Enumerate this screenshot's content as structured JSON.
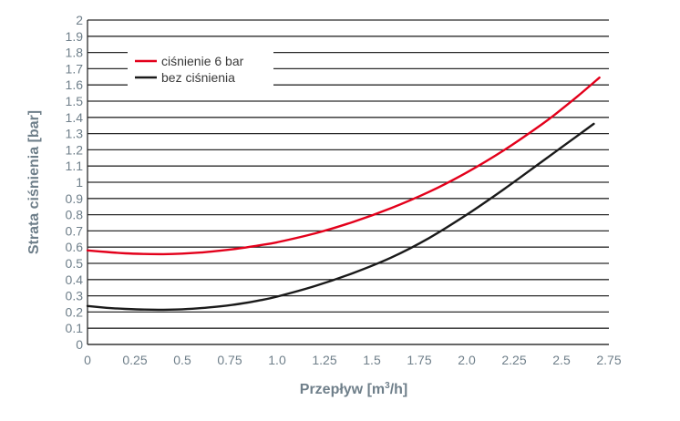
{
  "chart_data": {
    "type": "line",
    "xlabel_main": "Przepływ [m",
    "xlabel_sup": "3",
    "xlabel_tail": "/h]",
    "ylabel": "Strata ciśnienia [bar]",
    "xlim": [
      0,
      2.75
    ],
    "ylim": [
      0,
      2
    ],
    "x_ticks": [
      "0",
      "0.25",
      "0.5",
      "0.75",
      "1.0",
      "1.25",
      "1.5",
      "1.75",
      "2.0",
      "2.25",
      "2.5",
      "2.75"
    ],
    "y_ticks": [
      "0",
      "0.1",
      "0.2",
      "0.3",
      "0.4",
      "0.5",
      "0.6",
      "0.7",
      "0.8",
      "0.9",
      "1",
      "1.1",
      "1.2",
      "1.3",
      "1.4",
      "1.5",
      "1.6",
      "1.7",
      "1.8",
      "1.9",
      "2"
    ],
    "grid": "horizontal",
    "legend_position": "top-left",
    "series": [
      {
        "name": "ciśnienie 6 bar",
        "color": "#e3001b",
        "x": [
          0,
          0.1,
          0.2,
          0.3,
          0.4,
          0.5,
          0.6,
          0.7,
          0.8,
          0.9,
          1.0,
          1.2,
          1.4,
          1.6,
          1.8,
          2.0,
          2.2,
          2.4,
          2.5,
          2.6,
          2.7
        ],
        "y": [
          0.58,
          0.57,
          0.562,
          0.558,
          0.557,
          0.56,
          0.567,
          0.578,
          0.592,
          0.61,
          0.63,
          0.685,
          0.755,
          0.84,
          0.94,
          1.06,
          1.2,
          1.36,
          1.45,
          1.545,
          1.645
        ]
      },
      {
        "name": "bez ciśnienia",
        "color": "#1a1a1a",
        "x": [
          0,
          0.1,
          0.2,
          0.3,
          0.4,
          0.5,
          0.6,
          0.7,
          0.8,
          0.9,
          1.0,
          1.2,
          1.4,
          1.6,
          1.8,
          2.0,
          2.2,
          2.4,
          2.5,
          2.6,
          2.67
        ],
        "y": [
          0.237,
          0.226,
          0.219,
          0.215,
          0.214,
          0.217,
          0.224,
          0.235,
          0.25,
          0.27,
          0.295,
          0.36,
          0.44,
          0.535,
          0.655,
          0.8,
          0.96,
          1.13,
          1.215,
          1.3,
          1.36
        ]
      }
    ]
  }
}
